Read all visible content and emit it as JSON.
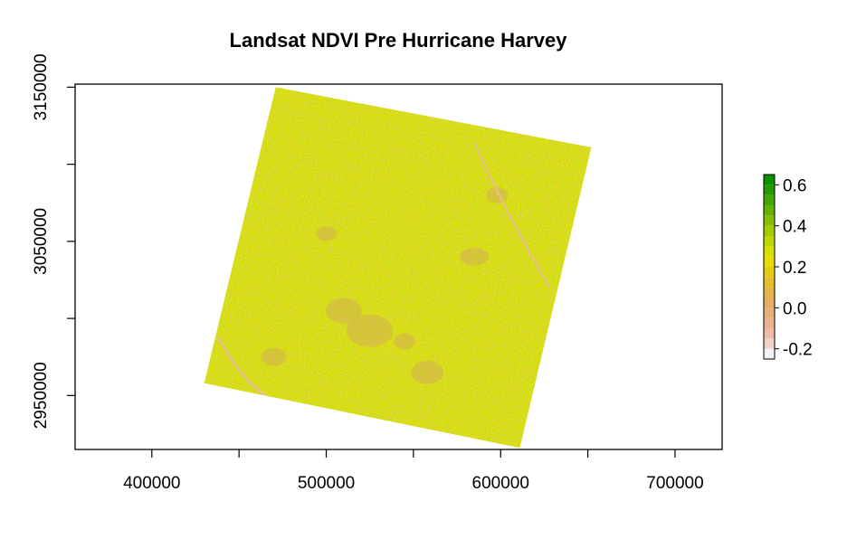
{
  "chart_data": {
    "type": "heatmap",
    "title": "Landsat NDVI Pre Hurricane Harvey",
    "xlabel": "",
    "ylabel": "",
    "xlim": [
      356000,
      727000
    ],
    "ylim": [
      2915000,
      3152000
    ],
    "x_ticks": [
      400000,
      450000,
      500000,
      550000,
      600000,
      650000,
      700000
    ],
    "x_tick_labels": [
      {
        "value": 400000,
        "label": "400000"
      },
      {
        "value": 500000,
        "label": "500000"
      },
      {
        "value": 600000,
        "label": "600000"
      },
      {
        "value": 700000,
        "label": "700000"
      }
    ],
    "y_ticks": [
      2950000,
      3000000,
      3050000,
      3100000,
      3150000
    ],
    "y_tick_labels": [
      {
        "value": 2950000,
        "label": "2950000"
      },
      {
        "value": 3050000,
        "label": "3050000"
      },
      {
        "value": 3150000,
        "label": "3150000"
      }
    ],
    "scene_corners": [
      [
        471000,
        3150000
      ],
      [
        652000,
        3111000
      ],
      [
        611000,
        2916000
      ],
      [
        430000,
        2958000
      ]
    ],
    "legend": {
      "position": "right",
      "range": [
        -0.25,
        0.65
      ],
      "breaks": [
        -0.25,
        -0.2,
        -0.15,
        -0.1,
        -0.05,
        0.0,
        0.05,
        0.1,
        0.15,
        0.2,
        0.25,
        0.3,
        0.35,
        0.4,
        0.45,
        0.5,
        0.55,
        0.6,
        0.65
      ],
      "colors": [
        "#f2f2f2",
        "#efd3c9",
        "#ebbba6",
        "#e9b38f",
        "#e6ae7b",
        "#e3ad63",
        "#e2b347",
        "#e2be2c",
        "#e3cc10",
        "#e5de00",
        "#d6de00",
        "#bed700",
        "#a3cc00",
        "#86c000",
        "#66b200",
        "#45a600",
        "#269b00",
        "#0a9200"
      ],
      "tick_labels": [
        {
          "value": -0.2,
          "label": "-0.2"
        },
        {
          "value": 0.0,
          "label": "0.0"
        },
        {
          "value": 0.2,
          "label": "0.2"
        },
        {
          "value": 0.4,
          "label": "0.4"
        },
        {
          "value": 0.6,
          "label": "0.6"
        }
      ]
    },
    "grid": false,
    "colors": {
      "base_vegetation": "#e5de00",
      "low_vegetation": "#e3ad63",
      "high_vegetation": "#86c000",
      "water": "#ebbba6"
    }
  }
}
